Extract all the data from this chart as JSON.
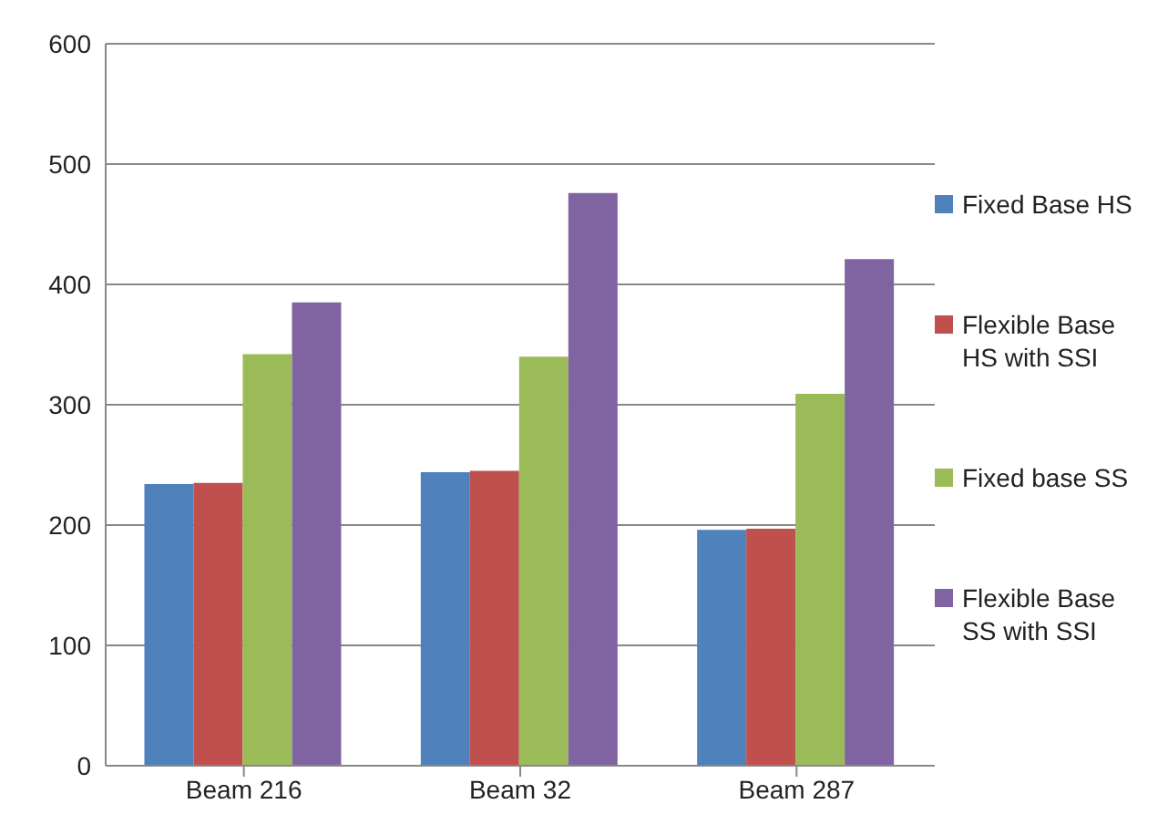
{
  "chart_data": {
    "type": "bar",
    "categories": [
      "Beam 216",
      "Beam 32",
      "Beam 287"
    ],
    "series": [
      {
        "name": "Fixed Base HS",
        "color": "#4f81bd",
        "values": [
          234,
          244,
          196
        ]
      },
      {
        "name": "Flexible Base HS with SSI",
        "color": "#c0504d",
        "values": [
          235,
          245,
          197
        ]
      },
      {
        "name": "Fixed base SS",
        "color": "#9bbb59",
        "values": [
          342,
          340,
          309
        ]
      },
      {
        "name": "Flexible Base SS with SSI",
        "color": "#8064a2",
        "values": [
          385,
          476,
          421
        ]
      }
    ],
    "ylim": [
      0,
      600
    ],
    "yticks": [
      0,
      100,
      200,
      300,
      400,
      500,
      600
    ],
    "grid": "y",
    "legend": "right"
  }
}
